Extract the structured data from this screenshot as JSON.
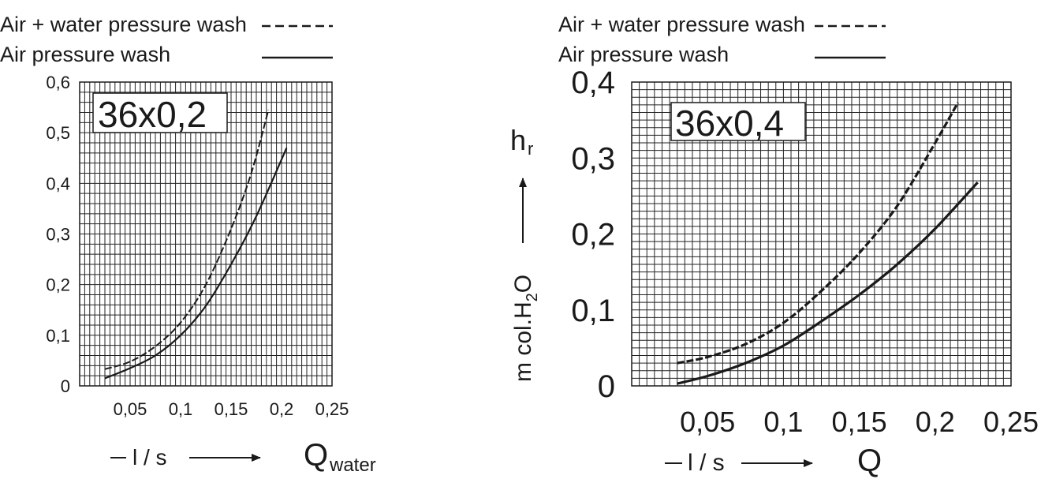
{
  "chart_data": [
    {
      "type": "line",
      "legend": {
        "placement": "top-left",
        "entries": [
          {
            "label": "Air + water pressure wash",
            "style": "dashed"
          },
          {
            "label": "Air pressure wash",
            "style": "solid"
          }
        ]
      },
      "box_label": "36x0,2",
      "x_ticks": [
        "0,05",
        "0,1",
        "0,15",
        "0,2",
        "0,25"
      ],
      "y_ticks": [
        "0",
        "0,1",
        "0,2",
        "0,3",
        "0,4",
        "0,5",
        "0,6"
      ],
      "x_unit": "l / s",
      "x_symbol_main": "Q",
      "x_symbol_sub": "water",
      "xlim": [
        0,
        0.25
      ],
      "ylim": [
        0,
        0.6
      ],
      "grid": true,
      "series": [
        {
          "name": "Air + water pressure wash",
          "style": "dashed",
          "x": [
            0.025,
            0.05,
            0.075,
            0.1,
            0.125,
            0.15,
            0.17,
            0.187
          ],
          "y": [
            0.033,
            0.048,
            0.078,
            0.125,
            0.2,
            0.31,
            0.42,
            0.545
          ]
        },
        {
          "name": "Air pressure wash",
          "style": "solid",
          "x": [
            0.025,
            0.05,
            0.075,
            0.1,
            0.125,
            0.15,
            0.175,
            0.205
          ],
          "y": [
            0.015,
            0.035,
            0.06,
            0.1,
            0.158,
            0.24,
            0.335,
            0.47
          ]
        }
      ]
    },
    {
      "type": "line",
      "legend": {
        "placement": "top-left",
        "entries": [
          {
            "label": "Air + water pressure wash",
            "style": "dashed"
          },
          {
            "label": "Air pressure wash",
            "style": "solid"
          }
        ]
      },
      "box_label": "36x0,4",
      "x_ticks": [
        "0,05",
        "0,1",
        "0,15",
        "0,2",
        "0,25"
      ],
      "y_ticks": [
        "0",
        "0,1",
        "0,2",
        "0,3",
        "0,4"
      ],
      "x_unit": "l / s",
      "x_symbol_main": "Q",
      "y_symbol_main": "h",
      "y_symbol_sub": "r",
      "y_unit_parts": [
        "m col.H",
        "2",
        "O"
      ],
      "xlim": [
        0,
        0.25
      ],
      "ylim": [
        0,
        0.4
      ],
      "grid": true,
      "series": [
        {
          "name": "Air + water pressure wash",
          "style": "dashed",
          "x": [
            0.03,
            0.05,
            0.075,
            0.1,
            0.125,
            0.15,
            0.175,
            0.2,
            0.215
          ],
          "y": [
            0.03,
            0.038,
            0.055,
            0.083,
            0.125,
            0.175,
            0.237,
            0.32,
            0.373
          ]
        },
        {
          "name": "Air pressure wash",
          "style": "solid",
          "x": [
            0.03,
            0.05,
            0.075,
            0.1,
            0.125,
            0.15,
            0.175,
            0.2,
            0.228
          ],
          "y": [
            0.003,
            0.013,
            0.03,
            0.053,
            0.085,
            0.12,
            0.16,
            0.207,
            0.268
          ]
        }
      ]
    }
  ]
}
